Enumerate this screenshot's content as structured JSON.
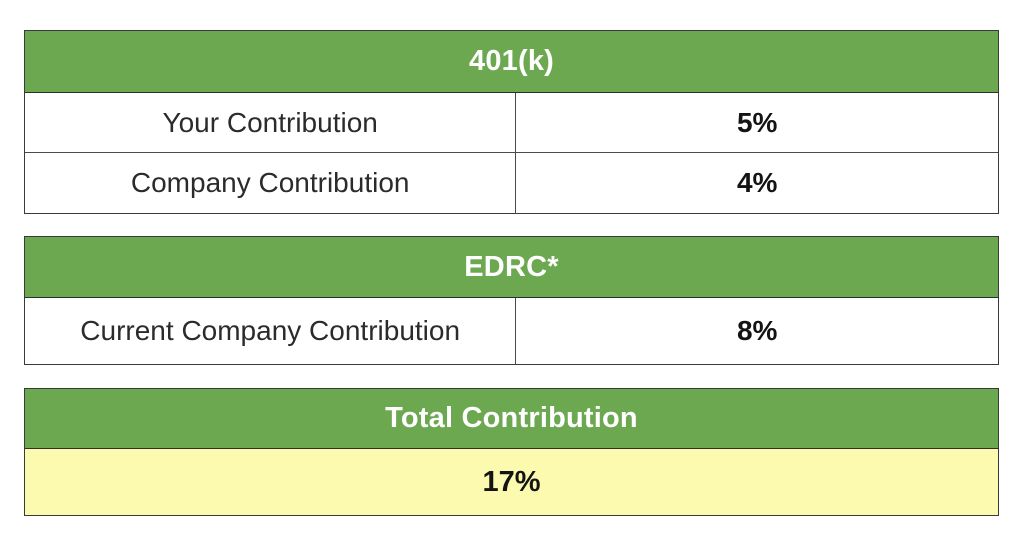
{
  "page": {
    "background": "#ffffff"
  },
  "colors": {
    "header_green": "#6CA850",
    "total_value_yellow": "#FBFAAE",
    "border_dark": "#3a3a3a",
    "header_text": "#ffffff",
    "label_text": "#2b2b2b",
    "value_text": "#141414"
  },
  "tables": {
    "k401": {
      "title": "401(k)",
      "rows": [
        {
          "label": "Your Contribution",
          "value": "5%"
        },
        {
          "label": "Company Contribution",
          "value": "4%"
        }
      ]
    },
    "edrc": {
      "title": "EDRC*",
      "rows": [
        {
          "label": "Current Company Contribution",
          "value": "8%"
        }
      ]
    },
    "total": {
      "title": "Total Contribution",
      "value": "17%"
    }
  }
}
